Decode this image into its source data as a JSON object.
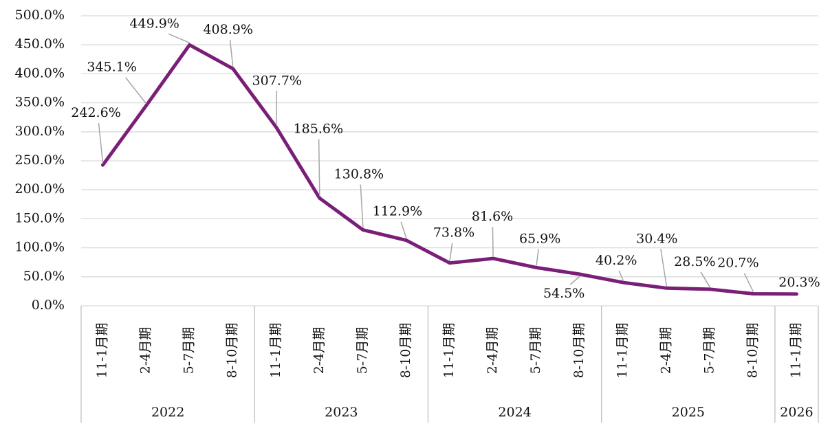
{
  "chart_data": {
    "type": "line",
    "groups": [
      {
        "name": "2022",
        "categories": [
          "11-1月期",
          "2-4月期",
          "5-7月期",
          "8-10月期"
        ]
      },
      {
        "name": "2023",
        "categories": [
          "11-1月期",
          "2-4月期",
          "5-7月期",
          "8-10月期"
        ]
      },
      {
        "name": "2024",
        "categories": [
          "11-1月期",
          "2-4月期",
          "5-7月期",
          "8-10月期"
        ]
      },
      {
        "name": "2025",
        "categories": [
          "11-1月期",
          "2-4月期",
          "5-7月期",
          "8-10月期"
        ]
      },
      {
        "name": "2026",
        "categories": [
          "11-1月期"
        ]
      }
    ],
    "values": [
      242.6,
      345.1,
      449.9,
      408.9,
      307.7,
      185.6,
      130.8,
      112.9,
      73.8,
      81.6,
      65.9,
      54.5,
      40.2,
      30.4,
      28.5,
      20.7,
      20.3
    ],
    "value_labels": [
      "242.6%",
      "345.1%",
      "449.9%",
      "408.9%",
      "307.7%",
      "185.6%",
      "130.8%",
      "112.9%",
      "73.8%",
      "81.6%",
      "65.9%",
      "54.5%",
      "40.2%",
      "30.4%",
      "28.5%",
      "20.7%",
      "20.3%"
    ],
    "color": "#7a1f78",
    "ylim": [
      0,
      500
    ],
    "yticks": [
      {
        "value": 0,
        "label": "0.0%"
      },
      {
        "value": 50,
        "label": "50.0%"
      },
      {
        "value": 100,
        "label": "100.0%"
      },
      {
        "value": 150,
        "label": "150.0%"
      },
      {
        "value": 200,
        "label": "200.0%"
      },
      {
        "value": 250,
        "label": "250.0%"
      },
      {
        "value": 300,
        "label": "300.0%"
      },
      {
        "value": 350,
        "label": "350.0%"
      },
      {
        "value": 400,
        "label": "400.0%"
      },
      {
        "value": 450,
        "label": "450.0%"
      },
      {
        "value": 500,
        "label": "500.0%"
      }
    ],
    "grid": true
  }
}
